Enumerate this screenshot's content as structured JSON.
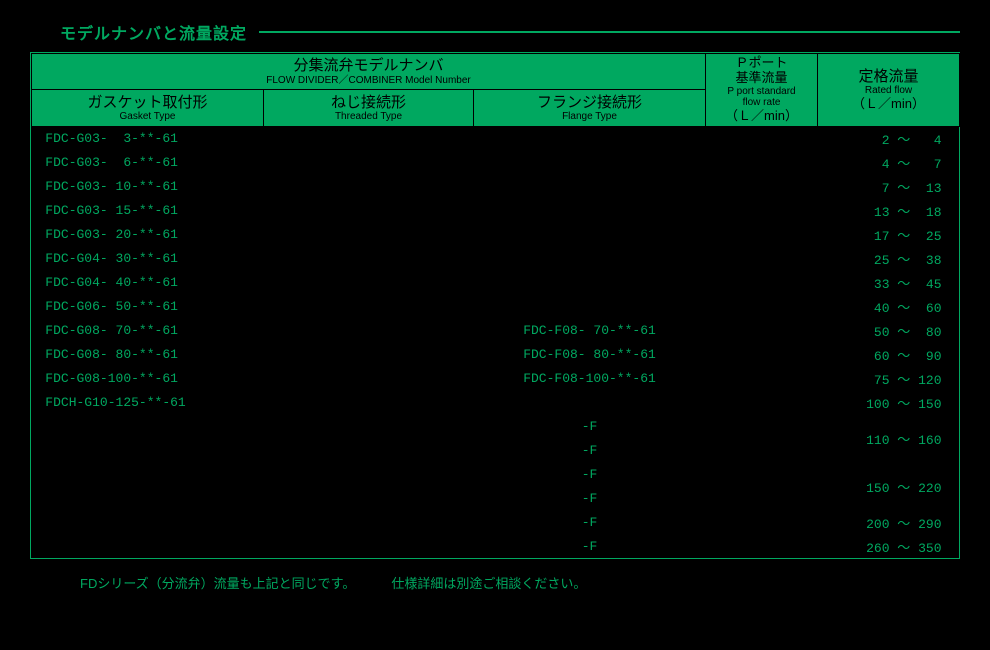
{
  "title": "モデルナンバと流量設定",
  "colors": {
    "background": "#000000",
    "accent": "#00a860",
    "header_text": "#000000"
  },
  "header": {
    "model": {
      "jp": "分集流弁モデルナンバ",
      "en": "FLOW DIVIDER／COMBINER Model Number"
    },
    "gasket": {
      "jp": "ガスケット取付形",
      "en": "Gasket Type"
    },
    "threaded": {
      "jp": "ねじ接続形",
      "en": "Threaded Type"
    },
    "flange": {
      "jp": "フランジ接続形",
      "en": "Flange Type"
    },
    "pport": {
      "jp1": "Ｐポート",
      "jp2": "基準流量",
      "en": "P port standard\nflow rate",
      "unit": "（Ｌ／min）"
    },
    "rated": {
      "jp": "定格流量",
      "en": "Rated flow",
      "unit": "（Ｌ／min）"
    }
  },
  "rows": [
    {
      "g": " FDC-G03-  3-**-61",
      "t": "",
      "f": "",
      "p": "",
      "r": "  2 ～   4"
    },
    {
      "g": " FDC-G03-  6-**-61",
      "t": "",
      "f": "",
      "p": "",
      "r": "  4 ～   7"
    },
    {
      "g": " FDC-G03- 10-**-61",
      "t": "",
      "f": "",
      "p": "",
      "r": "  7 ～  13"
    },
    {
      "g": " FDC-G03- 15-**-61",
      "t": "",
      "f": "",
      "p": "",
      "r": " 13 ～  18"
    },
    {
      "g": " FDC-G03- 20-**-61",
      "t": "",
      "f": "",
      "p": "",
      "r": " 17 ～  25"
    },
    {
      "g": " FDC-G04- 30-**-61",
      "t": "",
      "f": "",
      "p": "",
      "r": " 25 ～  38"
    },
    {
      "g": " FDC-G04- 40-**-61",
      "t": "",
      "f": "",
      "p": "",
      "r": " 33 ～  45"
    },
    {
      "g": " FDC-G06- 50-**-61",
      "t": "",
      "f": "",
      "p": "",
      "r": " 40 ～  60"
    },
    {
      "g": " FDC-G08- 70-**-61",
      "t": "",
      "f": "FDC-F08- 70-**-61",
      "p": "",
      "r": " 50 ～  80"
    },
    {
      "g": " FDC-G08- 80-**-61",
      "t": "",
      "f": "FDC-F08- 80-**-61",
      "p": "",
      "r": " 60 ～  90"
    },
    {
      "g": " FDC-G08-100-**-61",
      "t": "",
      "f": "FDC-F08-100-**-61",
      "p": "",
      "r": " 75 ～ 120"
    },
    {
      "g": " FDCH-G10-125-**-61",
      "t": "",
      "f": "",
      "p": "",
      "r": "100 ～ 150"
    }
  ],
  "tall_rows": [
    {
      "f1": "-F",
      "f2": "-F",
      "r": "110 ～ 160"
    },
    {
      "f1": "-F",
      "f2": "-F",
      "r": "150 ～ 220"
    }
  ],
  "end_rows": [
    {
      "f": "-F",
      "r": "200 ～ 290"
    },
    {
      "f": "-F",
      "r": "260 ～ 350"
    }
  ],
  "footer": {
    "note1": "FDシリーズ（分流弁）流量も上記と同じです。",
    "note2": "仕様詳細は別途ご相談ください。"
  }
}
